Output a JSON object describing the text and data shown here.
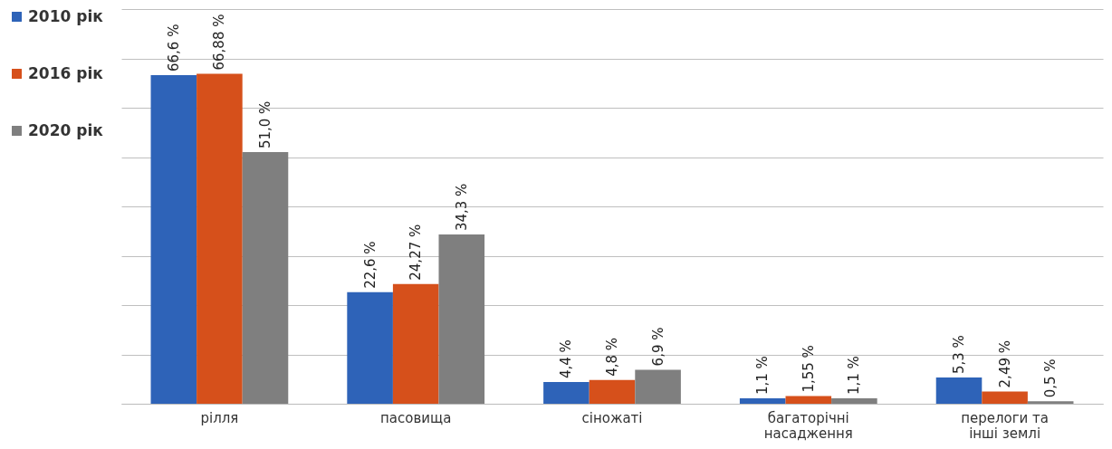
{
  "chart_data": {
    "type": "bar",
    "categories": [
      "рілля",
      "пасовища",
      "сіножаті",
      "багаторічні насадження",
      "перелоги та інші землі"
    ],
    "series": [
      {
        "name": "2010 рік",
        "color": "#2e63b8",
        "values": [
          66.6,
          22.6,
          4.4,
          1.1,
          5.3
        ],
        "value_labels": [
          "66,6 %",
          "22,6 %",
          "4,4 %",
          "1,1 %",
          "5,3 %"
        ]
      },
      {
        "name": "2016 рік",
        "color": "#d6501b",
        "values": [
          66.88,
          24.27,
          4.8,
          1.55,
          2.49
        ],
        "value_labels": [
          "66,88 %",
          "24,27 %",
          "4,8 %",
          "1,55 %",
          "2,49 %"
        ]
      },
      {
        "name": "2020 рік",
        "color": "#7f7f7f",
        "values": [
          51.0,
          34.3,
          6.9,
          1.1,
          0.5
        ],
        "value_labels": [
          "51,0 %",
          "34,3 %",
          "6,9 %",
          "1,1 %",
          "0,5 %"
        ]
      }
    ],
    "ylim": [
      0,
      80
    ],
    "yticks": [
      {
        "value": 0,
        "label": null
      },
      {
        "value": 10,
        "label": null
      },
      {
        "value": 20,
        "label": null
      },
      {
        "value": 30,
        "label": null
      },
      {
        "value": 40,
        "label": null
      },
      {
        "value": 50,
        "label": null
      },
      {
        "value": 60,
        "label": null
      },
      {
        "value": 70,
        "label": null
      },
      {
        "value": 80,
        "label": null
      }
    ],
    "tick_labels": "x",
    "grid": "y",
    "legend": "left"
  }
}
